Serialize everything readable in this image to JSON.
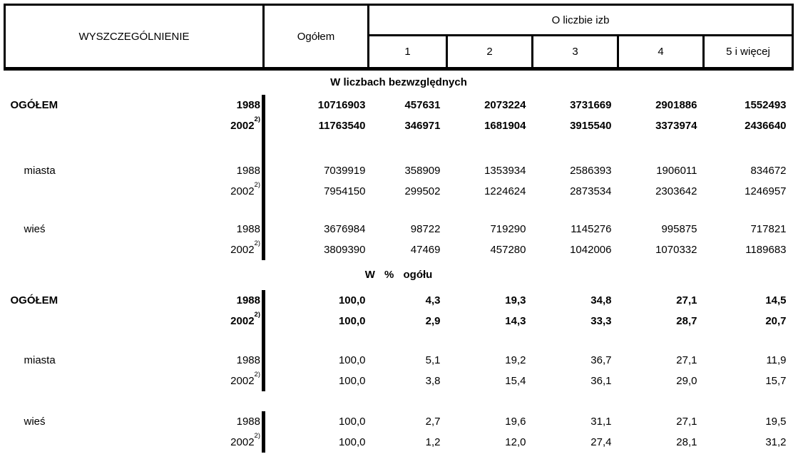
{
  "header": {
    "specification": "WYSZCZEGÓLNIENIE",
    "total": "Ogółem",
    "rooms_group": "O liczbie izb",
    "rooms": [
      "1",
      "2",
      "3",
      "4",
      "5 i więcej"
    ]
  },
  "footnote_marker": "2)",
  "section1": {
    "title": "W liczbach bezwzględnych",
    "rows": [
      {
        "label": "OGÓŁEM",
        "year": "1988",
        "sup": "",
        "v": [
          "10716903",
          "457631",
          "2073224",
          "3731669",
          "2901886",
          "1552493"
        ]
      },
      {
        "label": "",
        "year": "2002",
        "sup": "2)",
        "v": [
          "11763540",
          "346971",
          "1681904",
          "3915540",
          "3373974",
          "2436640"
        ]
      },
      {
        "label": "miasta",
        "year": "1988",
        "sup": "",
        "v": [
          "7039919",
          "358909",
          "1353934",
          "2586393",
          "1906011",
          "834672"
        ]
      },
      {
        "label": "",
        "year": "2002",
        "sup": "2)",
        "v": [
          "7954150",
          "299502",
          "1224624",
          "2873534",
          "2303642",
          "1246957"
        ]
      },
      {
        "label": "wieś",
        "year": "1988",
        "sup": "",
        "v": [
          "3676984",
          "98722",
          "719290",
          "1145276",
          "995875",
          "717821"
        ]
      },
      {
        "label": "",
        "year": "2002",
        "sup": "2)",
        "v": [
          "3809390",
          "47469",
          "457280",
          "1042006",
          "1070332",
          "1189683"
        ]
      }
    ]
  },
  "section2": {
    "title": "W % ogółu",
    "rows": [
      {
        "label": "OGÓŁEM",
        "year": "1988",
        "sup": "",
        "v": [
          "100,0",
          "4,3",
          "19,3",
          "34,8",
          "27,1",
          "14,5"
        ]
      },
      {
        "label": "",
        "year": "2002",
        "sup": "2)",
        "v": [
          "100,0",
          "2,9",
          "14,3",
          "33,3",
          "28,7",
          "20,7"
        ]
      },
      {
        "label": "miasta",
        "year": "1988",
        "sup": "",
        "v": [
          "100,0",
          "5,1",
          "19,2",
          "36,7",
          "27,1",
          "11,9"
        ]
      },
      {
        "label": "",
        "year": "2002",
        "sup": "2)",
        "v": [
          "100,0",
          "3,8",
          "15,4",
          "36,1",
          "29,0",
          "15,7"
        ]
      },
      {
        "label": "wieś",
        "year": "1988",
        "sup": "",
        "v": [
          "100,0",
          "2,7",
          "19,6",
          "31,1",
          "27,1",
          "19,5"
        ]
      },
      {
        "label": "",
        "year": "2002",
        "sup": "2)",
        "v": [
          "100,0",
          "1,2",
          "12,0",
          "27,4",
          "28,1",
          "31,2"
        ]
      }
    ]
  }
}
